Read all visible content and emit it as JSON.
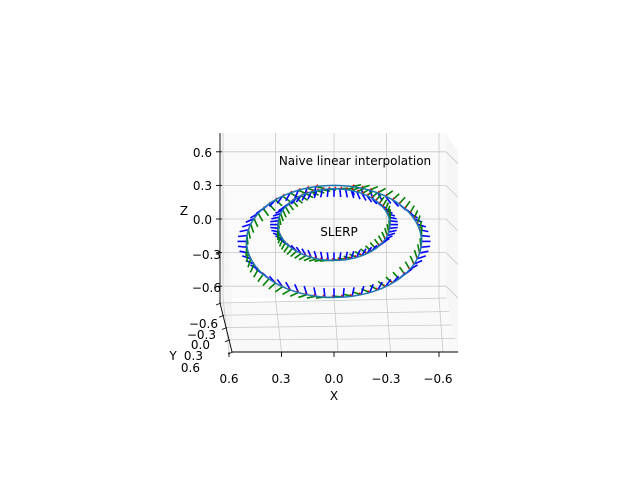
{
  "chart_data": {
    "type": "line",
    "projection": "3d",
    "xlabel": "X",
    "ylabel": "Y",
    "zlabel": "Z",
    "x_ticks": [
      "0.6",
      "0.3",
      "0.0",
      "−0.3",
      "−0.6"
    ],
    "y_ticks": [
      "−0.6",
      "−0.3",
      "0.0",
      "0.3",
      "0.6"
    ],
    "z_ticks": [
      "0.6",
      "0.3",
      "0.0",
      "−0.3",
      "−0.6"
    ],
    "xlim": [
      -0.7,
      0.7
    ],
    "ylim": [
      -0.7,
      0.7
    ],
    "zlim": [
      -0.7,
      0.7
    ],
    "grid": true,
    "annotations": [
      {
        "text": "Naive linear interpolation"
      },
      {
        "text": "SLERP"
      }
    ],
    "series": [
      {
        "shape": "circle",
        "plane": "x-z",
        "center": [
          0.0,
          0.0,
          -0.2
        ],
        "radius": 0.5,
        "color": "#1f77b4",
        "frame_axis_colors": {
          "x": "#ff0000",
          "y": "#008000",
          "z": "#0000ff"
        },
        "frames": 60
      },
      {
        "shape": "circle",
        "plane": "x-z",
        "center": [
          0.0,
          0.0,
          -0.05
        ],
        "radius": 0.32,
        "color": "#1f77b4",
        "frame_axis_colors": {
          "x": "#ff0000",
          "y": "#008000",
          "z": "#0000ff"
        },
        "frames": 60
      }
    ]
  }
}
